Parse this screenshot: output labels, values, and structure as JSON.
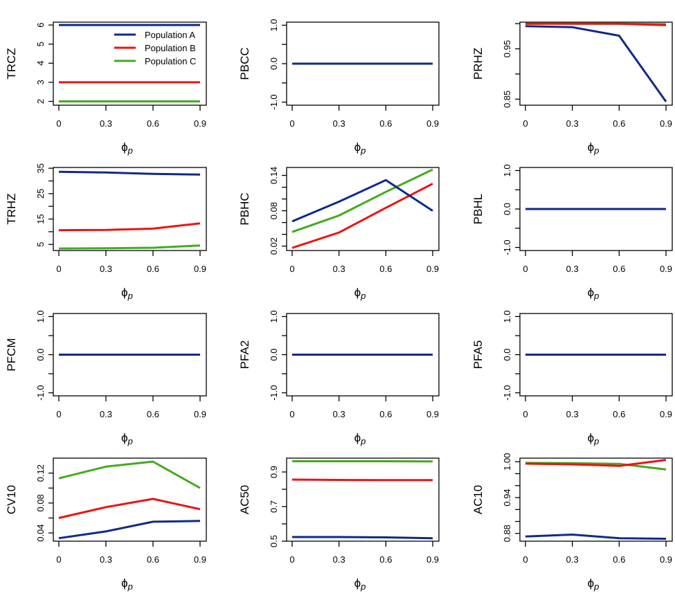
{
  "figure": {
    "type": "small-multiples",
    "rows": 4,
    "cols": 3
  },
  "colors": {
    "Population A": "#0d2a8a",
    "Population B": "#ee1111",
    "Population C": "#44aa1e",
    "axis": "#000000"
  },
  "legend": {
    "placement": "top-right",
    "panel": "TRCZ",
    "entries": [
      "Population A",
      "Population B",
      "Population C"
    ]
  },
  "chart_data": [
    {
      "type": "line",
      "title": "",
      "ylabel": "TRCZ",
      "xlabel": "ϕ",
      "xlabel_sub": "p",
      "x": [
        0,
        0.3,
        0.6,
        0.9
      ],
      "xticks": [
        "0",
        "0.3",
        "0.6",
        "0.9"
      ],
      "ylim": [
        1.8,
        6.15
      ],
      "yticks": [
        2,
        3,
        4,
        5,
        6
      ],
      "ytick_labels": [
        "2",
        "3",
        "4",
        "5",
        "6"
      ],
      "legend": true,
      "series": [
        {
          "name": "Population A",
          "values": [
            6,
            6,
            6,
            6
          ]
        },
        {
          "name": "Population B",
          "values": [
            3,
            3,
            3,
            3
          ]
        },
        {
          "name": "Population C",
          "values": [
            2,
            2,
            2,
            2
          ]
        }
      ]
    },
    {
      "type": "line",
      "ylabel": "PBCC",
      "xlabel": "ϕ",
      "xlabel_sub": "p",
      "x": [
        0,
        0.3,
        0.6,
        0.9
      ],
      "xticks": [
        "0",
        "0.3",
        "0.6",
        "0.9"
      ],
      "ylim": [
        -1.08,
        1.08
      ],
      "yticks": [
        -1,
        -0.5,
        0,
        0.5,
        1
      ],
      "ytick_labels": [
        "-1.0",
        "",
        "0.0",
        "",
        "1.0"
      ],
      "series": [
        {
          "name": "Population A",
          "values": [
            0,
            0,
            0,
            0
          ]
        },
        {
          "name": "Population B",
          "values": [
            0,
            0,
            0,
            0
          ]
        },
        {
          "name": "Population C",
          "values": [
            0,
            0,
            0,
            0
          ]
        }
      ]
    },
    {
      "type": "line",
      "ylabel": "PRHZ",
      "xlabel": "ϕ",
      "xlabel_sub": "p",
      "x": [
        0,
        0.3,
        0.6,
        0.9
      ],
      "xticks": [
        "0",
        "0.3",
        "0.6",
        "0.9"
      ],
      "ylim": [
        0.838,
        1.003
      ],
      "yticks": [
        0.85,
        0.9,
        0.95,
        1.0
      ],
      "ytick_labels": [
        "0.85",
        "",
        "0.95",
        ""
      ],
      "series": [
        {
          "name": "Population A",
          "values": [
            0.995,
            0.993,
            0.976,
            0.845
          ]
        },
        {
          "name": "Population B",
          "values": [
            1.0,
            1.0,
            1.0,
            0.997
          ]
        },
        {
          "name": "Population C",
          "values": [
            1.0,
            1.0,
            1.0,
            0.999
          ]
        }
      ]
    },
    {
      "type": "line",
      "ylabel": "TRHZ",
      "xlabel": "ϕ",
      "xlabel_sub": "p",
      "x": [
        0,
        0.3,
        0.6,
        0.9
      ],
      "xticks": [
        "0",
        "0.3",
        "0.6",
        "0.9"
      ],
      "ylim": [
        2.6,
        35.3
      ],
      "yticks": [
        5,
        10,
        15,
        20,
        25,
        30,
        35
      ],
      "ytick_labels": [
        "5",
        "",
        "15",
        "",
        "25",
        "",
        "35"
      ],
      "series": [
        {
          "name": "Population A",
          "values": [
            33.6,
            33.3,
            32.8,
            32.5
          ]
        },
        {
          "name": "Population B",
          "values": [
            10.6,
            10.7,
            11.2,
            13.3
          ]
        },
        {
          "name": "Population C",
          "values": [
            3.4,
            3.5,
            3.7,
            4.6
          ]
        }
      ]
    },
    {
      "type": "line",
      "ylabel": "PBHC",
      "xlabel": "ϕ",
      "xlabel_sub": "p",
      "x": [
        0,
        0.3,
        0.6,
        0.9
      ],
      "xticks": [
        "0",
        "0.3",
        "0.6",
        "0.9"
      ],
      "ylim": [
        0.0125,
        0.1535
      ],
      "yticks": [
        0.02,
        0.04,
        0.06,
        0.08,
        0.1,
        0.12,
        0.14
      ],
      "ytick_labels": [
        "0.02",
        "",
        "",
        "0.08",
        "",
        "",
        "0.14"
      ],
      "series": [
        {
          "name": "Population A",
          "values": [
            0.062,
            0.0955,
            0.132,
            0.08
          ]
        },
        {
          "name": "Population B",
          "values": [
            0.017,
            0.043,
            0.085,
            0.126
          ]
        },
        {
          "name": "Population C",
          "values": [
            0.044,
            0.072,
            0.112,
            0.15
          ]
        }
      ]
    },
    {
      "type": "line",
      "ylabel": "PBHL",
      "xlabel": "ϕ",
      "xlabel_sub": "p",
      "x": [
        0,
        0.3,
        0.6,
        0.9
      ],
      "xticks": [
        "0",
        "0.3",
        "0.6",
        "0.9"
      ],
      "ylim": [
        -1.08,
        1.08
      ],
      "yticks": [
        -1,
        -0.5,
        0,
        0.5,
        1
      ],
      "ytick_labels": [
        "-1.0",
        "",
        "0.0",
        "",
        "1.0"
      ],
      "series": [
        {
          "name": "Population A",
          "values": [
            0,
            0,
            0,
            0
          ]
        },
        {
          "name": "Population B",
          "values": [
            0,
            0,
            0,
            0
          ]
        },
        {
          "name": "Population C",
          "values": [
            0,
            0,
            0,
            0
          ]
        }
      ]
    },
    {
      "type": "line",
      "ylabel": "PFCM",
      "xlabel": "ϕ",
      "xlabel_sub": "p",
      "x": [
        0,
        0.3,
        0.6,
        0.9
      ],
      "xticks": [
        "0",
        "0.3",
        "0.6",
        "0.9"
      ],
      "ylim": [
        -1.08,
        1.08
      ],
      "yticks": [
        -1,
        -0.5,
        0,
        0.5,
        1
      ],
      "ytick_labels": [
        "-1.0",
        "",
        "0.0",
        "",
        "1.0"
      ],
      "series": [
        {
          "name": "Population A",
          "values": [
            0,
            0,
            0,
            0
          ]
        },
        {
          "name": "Population B",
          "values": [
            0,
            0,
            0,
            0
          ]
        },
        {
          "name": "Population C",
          "values": [
            0,
            0,
            0,
            0
          ]
        }
      ]
    },
    {
      "type": "line",
      "ylabel": "PFA2",
      "xlabel": "ϕ",
      "xlabel_sub": "p",
      "x": [
        0,
        0.3,
        0.6,
        0.9
      ],
      "xticks": [
        "0",
        "0.3",
        "0.6",
        "0.9"
      ],
      "ylim": [
        -1.08,
        1.08
      ],
      "yticks": [
        -1,
        -0.5,
        0,
        0.5,
        1
      ],
      "ytick_labels": [
        "-1.0",
        "",
        "0.0",
        "",
        "1.0"
      ],
      "series": [
        {
          "name": "Population A",
          "values": [
            0,
            0,
            0,
            0
          ]
        },
        {
          "name": "Population B",
          "values": [
            0,
            0,
            0,
            0
          ]
        },
        {
          "name": "Population C",
          "values": [
            0,
            0,
            0,
            0
          ]
        }
      ]
    },
    {
      "type": "line",
      "ylabel": "PFA5",
      "xlabel": "ϕ",
      "xlabel_sub": "p",
      "x": [
        0,
        0.3,
        0.6,
        0.9
      ],
      "xticks": [
        "0",
        "0.3",
        "0.6",
        "0.9"
      ],
      "ylim": [
        -1.08,
        1.08
      ],
      "yticks": [
        -1,
        -0.5,
        0,
        0.5,
        1
      ],
      "ytick_labels": [
        "-1.0",
        "",
        "0.0",
        "",
        "1.0"
      ],
      "series": [
        {
          "name": "Population A",
          "values": [
            0,
            0,
            0,
            0
          ]
        },
        {
          "name": "Population B",
          "values": [
            0,
            0,
            0,
            0
          ]
        },
        {
          "name": "Population C",
          "values": [
            0,
            0,
            0,
            0
          ]
        }
      ]
    },
    {
      "type": "line",
      "ylabel": "CV10",
      "xlabel": "ϕ",
      "xlabel_sub": "p",
      "x": [
        0,
        0.3,
        0.6,
        0.9
      ],
      "xticks": [
        "0",
        "0.3",
        "0.6",
        "0.9"
      ],
      "ylim": [
        0.029,
        0.14
      ],
      "yticks": [
        0.04,
        0.06,
        0.08,
        0.1,
        0.12
      ],
      "ytick_labels": [
        "0.04",
        "",
        "0.08",
        "",
        "0.12"
      ],
      "series": [
        {
          "name": "Population A",
          "values": [
            0.033,
            0.042,
            0.055,
            0.056
          ]
        },
        {
          "name": "Population B",
          "values": [
            0.06,
            0.0745,
            0.0855,
            0.0717
          ]
        },
        {
          "name": "Population C",
          "values": [
            0.113,
            0.1286,
            0.1354,
            0.1
          ]
        }
      ]
    },
    {
      "type": "line",
      "ylabel": "AC50",
      "xlabel": "ϕ",
      "xlabel_sub": "p",
      "x": [
        0,
        0.3,
        0.6,
        0.9
      ],
      "xticks": [
        "0",
        "0.3",
        "0.6",
        "0.9"
      ],
      "ylim": [
        0.5,
        0.98
      ],
      "yticks": [
        0.5,
        0.6,
        0.7,
        0.8,
        0.9
      ],
      "ytick_labels": [
        "0.5",
        "",
        "0.7",
        "",
        "0.9"
      ],
      "series": [
        {
          "name": "Population A",
          "values": [
            0.524,
            0.524,
            0.522,
            0.517
          ]
        },
        {
          "name": "Population B",
          "values": [
            0.856,
            0.854,
            0.853,
            0.853
          ]
        },
        {
          "name": "Population C",
          "values": [
            0.962,
            0.962,
            0.962,
            0.961
          ]
        }
      ]
    },
    {
      "type": "line",
      "ylabel": "AC10",
      "xlabel": "ϕ",
      "xlabel_sub": "p",
      "x": [
        0,
        0.3,
        0.6,
        0.9
      ],
      "xticks": [
        "0",
        "0.3",
        "0.6",
        "0.9"
      ],
      "ylim": [
        0.867,
        1.006
      ],
      "yticks": [
        0.88,
        0.9,
        0.92,
        0.94,
        0.96,
        0.98,
        1.0
      ],
      "ytick_labels": [
        "0.88",
        "",
        "",
        "0.94",
        "",
        "",
        "1.00"
      ],
      "series": [
        {
          "name": "Population A",
          "values": [
            0.8749,
            0.878,
            0.872,
            0.871
          ]
        },
        {
          "name": "Population B",
          "values": [
            0.9968,
            0.9956,
            0.993,
            1.003
          ]
        },
        {
          "name": "Population C",
          "values": [
            0.998,
            0.9976,
            0.9964,
            0.987
          ]
        }
      ]
    }
  ]
}
